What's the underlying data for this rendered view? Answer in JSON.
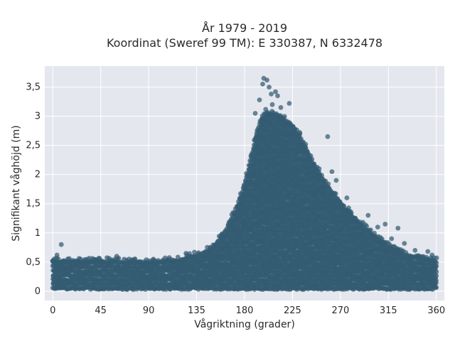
{
  "chart_data": {
    "type": "scatter",
    "title_lines": [
      "År 1979 - 2019",
      "Koordinat (Sweref 99 TM): E 330387, N 6332478"
    ],
    "xlabel": "Vågriktning (grader)",
    "ylabel": "Signifikant våghöjd (m)",
    "xlim": [
      -7.5,
      367.5
    ],
    "ylim": [
      -0.16,
      3.86
    ],
    "xticks": [
      0,
      45,
      90,
      135,
      180,
      225,
      270,
      315,
      360
    ],
    "yticks": [
      0,
      0.5,
      1,
      1.5,
      2,
      2.5,
      3,
      3.5
    ],
    "ytick_labels": [
      "0",
      "0,5",
      "1",
      "1,5",
      "2",
      "2,5",
      "3",
      "3,5"
    ],
    "grid": true,
    "marker_color": "#335b72",
    "plot_background": "#e5e7ee",
    "envelope_description": "dense point cloud; upper envelope of wave height by direction",
    "envelope": {
      "x": [
        0,
        20,
        45,
        90,
        120,
        135,
        150,
        160,
        170,
        180,
        190,
        195,
        200,
        210,
        220,
        225,
        235,
        245,
        255,
        270,
        285,
        300,
        315,
        330,
        345,
        360
      ],
      "upper": [
        0.5,
        0.48,
        0.5,
        0.47,
        0.52,
        0.6,
        0.72,
        0.95,
        1.3,
        1.8,
        2.6,
        2.9,
        3.05,
        3.0,
        2.9,
        2.8,
        2.55,
        2.15,
        1.85,
        1.5,
        1.2,
        0.95,
        0.75,
        0.6,
        0.55,
        0.5
      ],
      "lower": [
        0.05,
        0.05,
        0.05,
        0.05,
        0.05,
        0.05,
        0.05,
        0.05,
        0.05,
        0.05,
        0.05,
        0.05,
        0.05,
        0.05,
        0.05,
        0.05,
        0.05,
        0.05,
        0.05,
        0.05,
        0.05,
        0.05,
        0.05,
        0.05,
        0.05,
        0.05
      ]
    },
    "outliers": [
      {
        "x": 8,
        "y": 0.8
      },
      {
        "x": 4,
        "y": 0.62
      },
      {
        "x": 60,
        "y": 0.6
      },
      {
        "x": 125,
        "y": 0.65
      },
      {
        "x": 197,
        "y": 3.55
      },
      {
        "x": 198,
        "y": 3.65
      },
      {
        "x": 201,
        "y": 3.62
      },
      {
        "x": 203,
        "y": 3.5
      },
      {
        "x": 205,
        "y": 3.38
      },
      {
        "x": 209,
        "y": 3.42
      },
      {
        "x": 206,
        "y": 3.2
      },
      {
        "x": 211,
        "y": 3.35
      },
      {
        "x": 194,
        "y": 3.28
      },
      {
        "x": 222,
        "y": 3.22
      },
      {
        "x": 214,
        "y": 3.15
      },
      {
        "x": 190,
        "y": 3.05
      },
      {
        "x": 258,
        "y": 2.65
      },
      {
        "x": 262,
        "y": 2.05
      },
      {
        "x": 266,
        "y": 1.9
      },
      {
        "x": 276,
        "y": 1.6
      },
      {
        "x": 296,
        "y": 1.3
      },
      {
        "x": 305,
        "y": 1.1
      },
      {
        "x": 312,
        "y": 1.15
      },
      {
        "x": 318,
        "y": 0.9
      },
      {
        "x": 324,
        "y": 1.08
      },
      {
        "x": 330,
        "y": 0.82
      },
      {
        "x": 340,
        "y": 0.7
      },
      {
        "x": 352,
        "y": 0.68
      },
      {
        "x": 356,
        "y": 0.62
      },
      {
        "x": 240,
        "y": 2.3
      },
      {
        "x": 250,
        "y": 2.1
      },
      {
        "x": 284,
        "y": 1.25
      }
    ]
  }
}
